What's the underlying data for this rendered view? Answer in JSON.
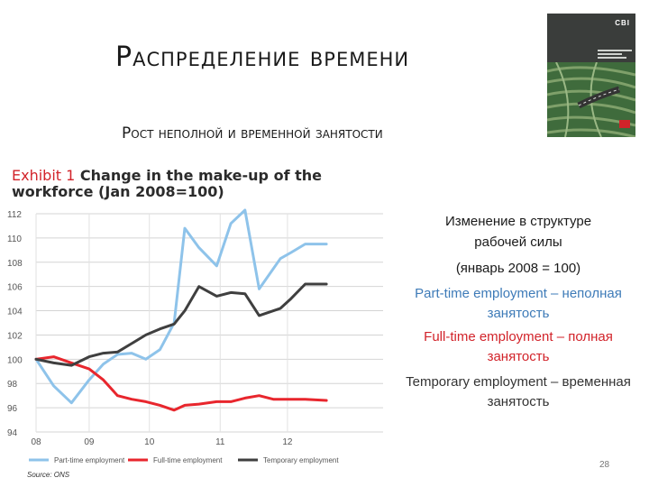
{
  "slide": {
    "title": "Распределение времени",
    "subtitle": "Рост неполной и временной занятости",
    "page_number": "28"
  },
  "exhibit": {
    "label": "Exhibit 1",
    "title": "Change in the make-up of the workforce (Jan 2008=100)"
  },
  "notes": {
    "line1": "Изменение в структуре",
    "line2": "рабочей силы",
    "line3": "(январь 2008 = 100)",
    "part_time": "Part-time employment – неполная занятость",
    "full_time": "Full-time employment – полная занятость",
    "temporary": "Temporary employment – временная занятость"
  },
  "source": "Source: ONS",
  "colors": {
    "part_time": "#8ec3ea",
    "full_time": "#e8262d",
    "temporary": "#3f3f3f",
    "exhibit_red": "#d2232a"
  },
  "chart_data": {
    "type": "line",
    "title": "Change in the make-up of the workforce (Jan 2008=100)",
    "ylim": [
      94,
      112
    ],
    "yticks": [
      94,
      96,
      98,
      100,
      102,
      104,
      106,
      108,
      110,
      112
    ],
    "xlim": [
      2008.0,
      2012.9
    ],
    "xticks": [
      {
        "label": "08",
        "x": 2008.0
      },
      {
        "label": "09",
        "x": 2008.75
      },
      {
        "label": "10",
        "x": 2009.6
      },
      {
        "label": "11",
        "x": 2010.6
      },
      {
        "label": "12",
        "x": 2011.55
      }
    ],
    "grid": true,
    "legend_position": "bottom",
    "series": [
      {
        "name": "Part-time employment",
        "key": "part_time",
        "x": [
          2008.0,
          2008.25,
          2008.5,
          2008.75,
          2008.95,
          2009.15,
          2009.35,
          2009.55,
          2009.75,
          2009.95,
          2010.1,
          2010.3,
          2010.55,
          2010.75,
          2010.95,
          2011.15,
          2011.45,
          2011.6,
          2011.8,
          2012.1
        ],
        "values": [
          100.0,
          97.8,
          96.4,
          98.3,
          99.6,
          100.4,
          100.5,
          100.0,
          100.8,
          103.0,
          110.8,
          109.2,
          107.7,
          111.2,
          112.3,
          105.8,
          108.3,
          108.8,
          109.5,
          109.5
        ]
      },
      {
        "name": "Full-time employment",
        "key": "full_time",
        "x": [
          2008.0,
          2008.25,
          2008.5,
          2008.75,
          2008.95,
          2009.15,
          2009.35,
          2009.55,
          2009.75,
          2009.95,
          2010.1,
          2010.3,
          2010.55,
          2010.75,
          2010.95,
          2011.15,
          2011.35,
          2011.6,
          2011.8,
          2012.1
        ],
        "values": [
          100.0,
          100.2,
          99.7,
          99.2,
          98.3,
          97.0,
          96.7,
          96.5,
          96.2,
          95.8,
          96.2,
          96.3,
          96.5,
          96.5,
          96.8,
          97.0,
          96.7,
          96.7,
          96.7,
          96.6
        ]
      },
      {
        "name": "Temporary employment",
        "key": "temporary",
        "x": [
          2008.0,
          2008.25,
          2008.5,
          2008.75,
          2008.95,
          2009.15,
          2009.35,
          2009.55,
          2009.75,
          2009.95,
          2010.1,
          2010.3,
          2010.55,
          2010.75,
          2010.95,
          2011.15,
          2011.45,
          2011.6,
          2011.8,
          2012.1
        ],
        "values": [
          100.0,
          99.7,
          99.5,
          100.2,
          100.5,
          100.6,
          101.3,
          102.0,
          102.5,
          102.9,
          104.0,
          106.0,
          105.2,
          105.5,
          105.4,
          103.6,
          104.2,
          105.0,
          106.2,
          106.2
        ]
      }
    ]
  }
}
